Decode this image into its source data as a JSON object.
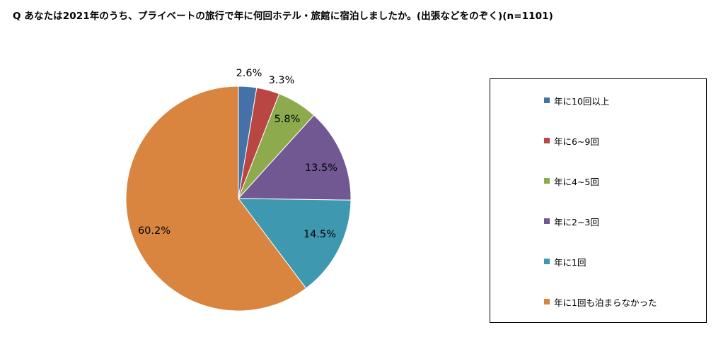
{
  "title": "Q あなたは2021年のうち、プライベートの旅行で年に何回ホテル・旅館に宿泊しましたか。(出張などをのぞく)(n=1101)",
  "chart_data": {
    "type": "pie",
    "legend_position": "right",
    "slices": [
      {
        "label": "年に10回以上",
        "value": 2.6,
        "value_label": "2.6%",
        "color": "#4472a8"
      },
      {
        "label": "年に6~9回",
        "value": 3.3,
        "value_label": "3.3%",
        "color": "#b84744"
      },
      {
        "label": "年に4~5回",
        "value": 5.8,
        "value_label": "5.8%",
        "color": "#8dab4d"
      },
      {
        "label": "年に2~3回",
        "value": 13.5,
        "value_label": "13.5%",
        "color": "#715893"
      },
      {
        "label": "年に1回",
        "value": 14.5,
        "value_label": "14.5%",
        "color": "#3e98b0"
      },
      {
        "label": "年に1回も泊まらなかった",
        "value": 60.2,
        "value_label": "60.2%",
        "color": "#d9843f"
      }
    ]
  }
}
